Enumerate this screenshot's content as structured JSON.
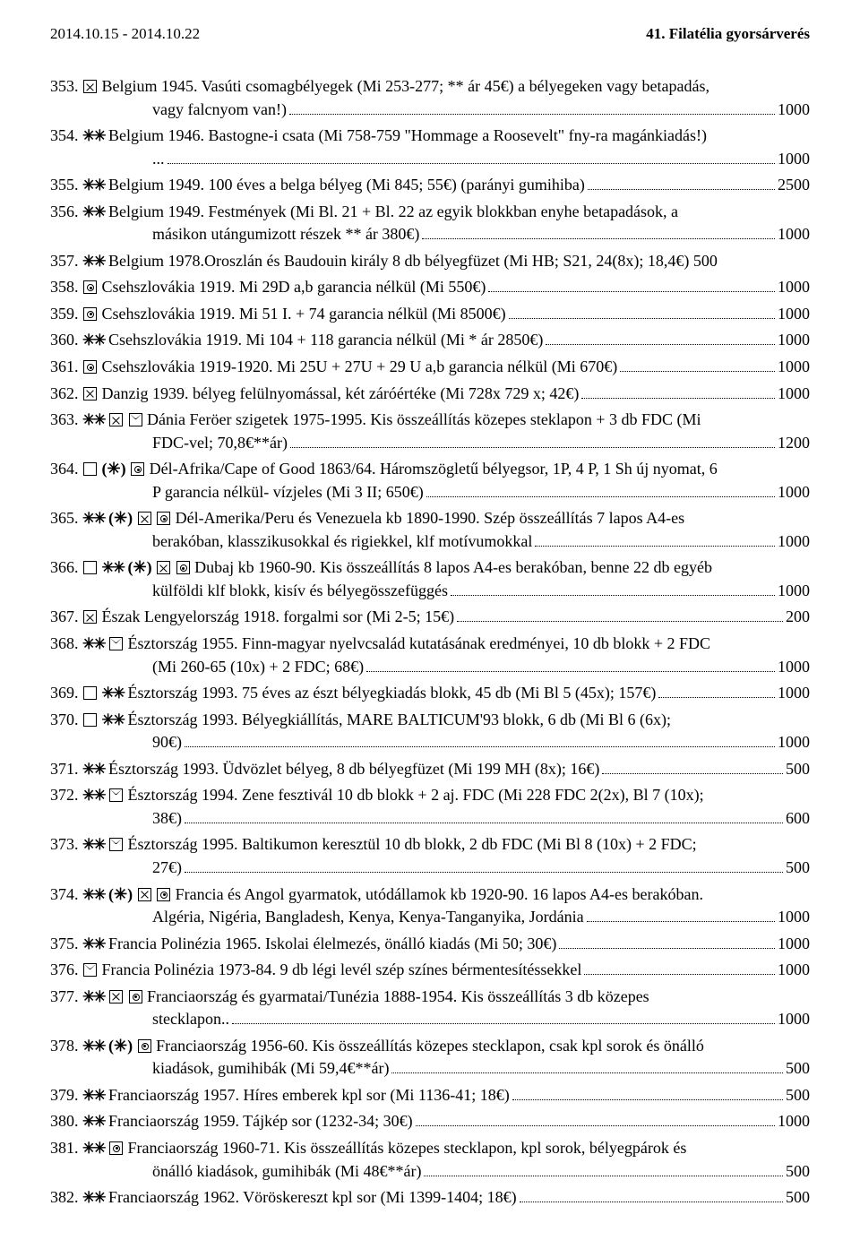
{
  "header": {
    "left": "2014.10.15 - 2014.10.22",
    "right": "41. Filatélia gyorsárverés"
  },
  "lots": [
    {
      "n": "353.",
      "sym": "x",
      "desc": "Belgium 1945. Vasúti csomagbélyegek (Mi 253-277; ** ár 45€) a bélyegeken vagy betapadás,",
      "cont": "vagy falcnyom van!)",
      "dots": true,
      "price": "1000"
    },
    {
      "n": "354.",
      "sym": "aa",
      "desc": "Belgium 1946. Bastogne-i csata (Mi 758-759 \"Hommage a Roosevelt\" fny-ra magánkiadás!)",
      "cont": "... ",
      "dots": true,
      "price": "1000"
    },
    {
      "n": "355.",
      "sym": "aa",
      "desc": "Belgium 1949. 100 éves a belga bélyeg (Mi 845; 55€) (parányi gumihiba)",
      "dots": true,
      "price": "2500"
    },
    {
      "n": "356.",
      "sym": "aa",
      "desc": "Belgium 1949. Festmények (Mi Bl. 21 + Bl. 22 az egyik blokkban enyhe betapadások, a",
      "cont": "másikon utángumizott részek ** ár 380€)",
      "dots": true,
      "price": "1000"
    },
    {
      "n": "357.",
      "sym": "aa",
      "desc": "Belgium 1978.Oroszlán és Baudouin király 8 db bélyegfüzet (Mi HB; S21, 24(8x); 18,4€) 500",
      "dots": false,
      "price": ""
    },
    {
      "n": "358.",
      "sym": "dot",
      "desc": "Csehszlovákia 1919. Mi 29D a,b garancia nélkül (Mi 550€)",
      "dots": true,
      "price": "1000"
    },
    {
      "n": "359.",
      "sym": "dot",
      "desc": "Csehszlovákia 1919. Mi 51 I. + 74 garancia nélkül (Mi 8500€)",
      "dots": true,
      "price": "1000"
    },
    {
      "n": "360.",
      "sym": "aa",
      "desc": "Csehszlovákia 1919. Mi 104 + 118 garancia nélkül (Mi * ár 2850€)",
      "dots": true,
      "price": "1000"
    },
    {
      "n": "361.",
      "sym": "dot",
      "desc": "Csehszlovákia 1919-1920. Mi 25U + 27U + 29 U a,b garancia nélkül (Mi 670€)",
      "dots": true,
      "price": "1000"
    },
    {
      "n": "362.",
      "sym": "x",
      "desc": "Danzig 1939. bélyeg felülnyomással, két záróértéke (Mi 728x 729 x; 42€)",
      "dots": true,
      "price": "1000"
    },
    {
      "n": "363.",
      "sym": "aa x env",
      "desc": "Dánia Feröer szigetek 1975-1995. Kis összeállítás közepes steklapon + 3 db FDC (Mi",
      "cont": "FDC-vel; 70,8€**ár)",
      "dots": true,
      "price": "1200"
    },
    {
      "n": "364.",
      "sym": "sq pa dot",
      "desc": "Dél-Afrika/Cape of Good 1863/64. Háromszögletű bélyegsor, 1P, 4 P, 1 Sh új nyomat, 6",
      "cont": "P garancia nélkül- vízjeles (Mi 3 II; 650€)",
      "dots": true,
      "price": "1000"
    },
    {
      "n": "365.",
      "sym": "aa pa x dot",
      "desc": "Dél-Amerika/Peru és Venezuela kb 1890-1990. Szép összeállítás 7 lapos A4-es",
      "cont": "berakóban, klasszikusokkal és rigiekkel, klf motívumokkal",
      "dots": true,
      "price": "1000"
    },
    {
      "n": "366.",
      "sym": "sq aa pa x dot",
      "desc": "Dubaj kb 1960-90. Kis összeállítás 8 lapos A4-es berakóban, benne 22 db egyéb",
      "cont": "külföldi klf blokk, kisív és bélyegösszefüggés",
      "dots": true,
      "price": "1000"
    },
    {
      "n": "367.",
      "sym": "x",
      "desc": "Észak Lengyelország 1918. forgalmi sor (Mi 2-5; 15€)",
      "dots": true,
      "price": "200"
    },
    {
      "n": "368.",
      "sym": "aa env",
      "desc": "Észtország 1955. Finn-magyar nyelvcsalád kutatásának eredményei, 10 db blokk + 2 FDC",
      "cont": "(Mi 260-65 (10x) + 2 FDC; 68€)",
      "dots": true,
      "price": "1000"
    },
    {
      "n": "369.",
      "sym": "sq aa",
      "desc": "Észtország 1993. 75 éves az észt bélyegkiadás blokk, 45 db (Mi Bl 5 (45x); 157€)",
      "dots": true,
      "price": "1000"
    },
    {
      "n": "370.",
      "sym": "sq aa",
      "desc": "Észtország 1993. Bélyegkiállítás, MARE BALTICUM'93 blokk, 6 db (Mi Bl 6 (6x);",
      "cont": "90€)",
      "dots": true,
      "price": "1000"
    },
    {
      "n": "371.",
      "sym": "aa",
      "desc": "Észtország 1993. Üdvözlet bélyeg, 8 db bélyegfüzet (Mi 199 MH (8x); 16€)",
      "dots": true,
      "price": "500"
    },
    {
      "n": "372.",
      "sym": "aa env",
      "desc": "Észtország 1994. Zene fesztivál 10 db blokk + 2 aj. FDC (Mi 228 FDC 2(2x), Bl 7 (10x);",
      "cont": "38€)",
      "dots": true,
      "price": "600"
    },
    {
      "n": "373.",
      "sym": "aa env",
      "desc": "Észtország 1995. Baltikumon keresztül 10 db blokk, 2 db FDC (Mi Bl 8 (10x) + 2 FDC;",
      "cont": "27€)",
      "dots": true,
      "price": "500"
    },
    {
      "n": "374.",
      "sym": "aa pa x dot",
      "desc": "Francia és Angol gyarmatok, utódállamok kb 1920-90. 16 lapos A4-es berakóban.",
      "cont": "Algéria, Nigéria, Bangladesh, Kenya, Kenya-Tanganyika, Jordánia",
      "dots": true,
      "price": "1000"
    },
    {
      "n": "375.",
      "sym": "aa",
      "desc": "Francia Polinézia 1965. Iskolai élelmezés, önálló kiadás (Mi 50; 30€)",
      "dots": true,
      "price": "1000"
    },
    {
      "n": "376.",
      "sym": "env",
      "desc": "Francia Polinézia 1973-84. 9 db légi levél szép színes bérmentesítéssekkel",
      "dots": true,
      "price": "1000"
    },
    {
      "n": "377.",
      "sym": "aa x dot",
      "desc": "Franciaország és gyarmatai/Tunézia 1888-1954. Kis összeállítás 3 db közepes",
      "cont": "stecklapon..",
      "dots": true,
      "price": "1000"
    },
    {
      "n": "378.",
      "sym": "aa pa dot",
      "desc": "Franciaország 1956-60. Kis összeállítás közepes stecklapon, csak kpl sorok és önálló",
      "cont": "kiadások, gumihibák (Mi 59,4€**ár)",
      "dots": true,
      "price": "500"
    },
    {
      "n": "379.",
      "sym": "aa",
      "desc": "Franciaország 1957. Híres emberek kpl sor (Mi 1136-41; 18€)",
      "dots": true,
      "price": "500"
    },
    {
      "n": "380.",
      "sym": "aa",
      "desc": "Franciaország 1959. Tájkép sor (1232-34; 30€)",
      "dots": true,
      "price": "1000"
    },
    {
      "n": "381.",
      "sym": "aa dot",
      "desc": "Franciaország 1960-71. Kis összeállítás közepes stecklapon, kpl sorok, bélyegpárok és",
      "cont": "önálló kiadások, gumihibák (Mi 48€**ár)",
      "dots": true,
      "price": "500"
    },
    {
      "n": "382.",
      "sym": "aa",
      "desc": "Franciaország 1962. Vöröskereszt kpl sor (Mi 1399-1404; 18€)",
      "dots": true,
      "price": "500"
    }
  ]
}
